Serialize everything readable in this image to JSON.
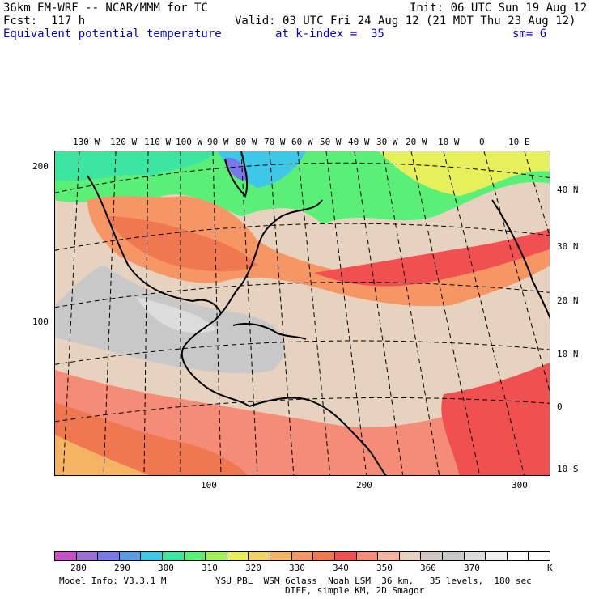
{
  "header": {
    "model_line": "36km EM-WRF -- NCAR/MMM for TC",
    "init_line": "Init: 06 UTC Sun 19 Aug 12",
    "fcst_line": "Fcst:  117 h",
    "valid_line": "Valid: 03 UTC Fri 24 Aug 12 (21 MDT Thu 23 Aug 12)",
    "field_name": "Equivalent potential temperature",
    "level": "at k-index =  35",
    "smoothing": "sm= 6"
  },
  "map": {
    "top_lon_labels": [
      "130 W",
      "120 W",
      "110 W",
      "100 W",
      "90 W",
      "80 W",
      "70 W",
      "60 W",
      "50 W",
      "40 W",
      "30 W",
      "20 W",
      "10 W",
      "0",
      "10 E"
    ],
    "right_lat_labels": [
      "40 N",
      "30 N",
      "20 N",
      "10 N",
      "0",
      "10 S"
    ],
    "left_grid_labels": [
      "200",
      "100"
    ],
    "bottom_grid_labels": [
      "100",
      "200",
      "300"
    ]
  },
  "colorbar": {
    "colors": [
      "#c850c8",
      "#9b6fd6",
      "#7878e6",
      "#5a9be6",
      "#3cc8e6",
      "#3ce6a0",
      "#5af078",
      "#a0f05a",
      "#e6f05a",
      "#f0d264",
      "#f5b464",
      "#f59664",
      "#f07850",
      "#f05050",
      "#f58c78",
      "#f5b4a0",
      "#e6d2be",
      "#d2c8c3",
      "#c8c8c8",
      "#dcdcdc",
      "#f0f0f0",
      "#ffffff",
      "#ffffff"
    ],
    "labels": [
      "280",
      "290",
      "300",
      "310",
      "320",
      "330",
      "340",
      "350",
      "360",
      "370"
    ],
    "unit": "K"
  },
  "footer": {
    "line1_left": "Model Info: V3.3.1 M",
    "line1_right": "YSU PBL  WSM 6class  Noah LSM  36 km,   35 levels,  180 sec",
    "line2": "DIFF, simple KM, 2D Smagor"
  }
}
